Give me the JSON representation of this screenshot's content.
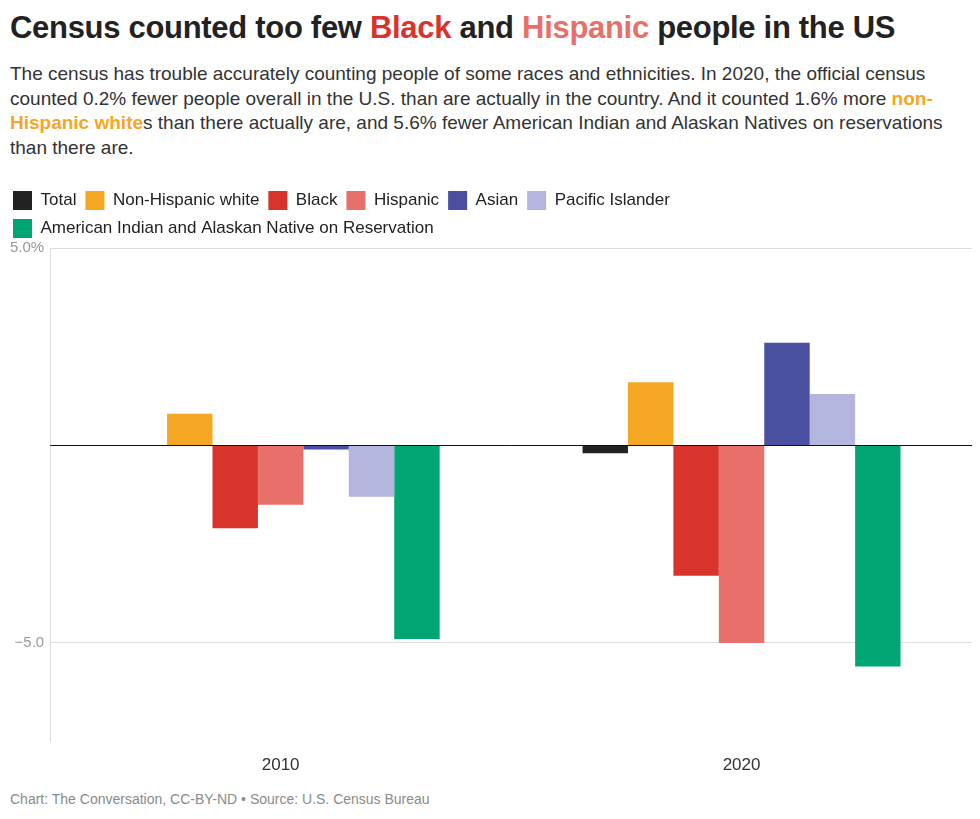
{
  "chart_data": {
    "type": "bar",
    "title": "Census counted too few Black and Hispanic people in the US",
    "subtitle": "The census has trouble accurately counting people of some races and ethnicities. In 2020, the official census counted 0.2% fewer people overall in the U.S. than are actually in the country. And it counted 1.6% more non-Hispanic whites than there actually are, and 5.6% fewer American Indian and Alaskan Natives on reservations than there are.",
    "source": "Chart: The Conversation, CC-BY-ND • Source: U.S. Census Bureau",
    "categories": [
      "2010",
      "2020"
    ],
    "series": [
      {
        "name": "Total",
        "color": "#222222",
        "values": [
          0.0,
          -0.2
        ]
      },
      {
        "name": "Non-Hispanic white",
        "color": "#f5a623",
        "values": [
          0.8,
          1.6
        ]
      },
      {
        "name": "Black",
        "color": "#d9342b",
        "values": [
          -2.1,
          -3.3
        ]
      },
      {
        "name": "Hispanic",
        "color": "#e8706a",
        "values": [
          -1.5,
          -5.0
        ]
      },
      {
        "name": "Asian",
        "color": "#4a4fa0",
        "values": [
          -0.1,
          2.6
        ]
      },
      {
        "name": "Pacific Islander",
        "color": "#b3b5dd",
        "values": [
          -1.3,
          1.3
        ]
      },
      {
        "name": "American Indian and Alaskan Native on Reservation",
        "color": "#00a574",
        "values": [
          -4.9,
          -5.6
        ]
      }
    ],
    "ylim": [
      -7.5,
      5
    ],
    "yticks": [
      {
        "value": -5,
        "label": "−5.0"
      },
      {
        "value": 5,
        "label": "5.0%"
      }
    ],
    "grid": true,
    "legend": "top"
  }
}
